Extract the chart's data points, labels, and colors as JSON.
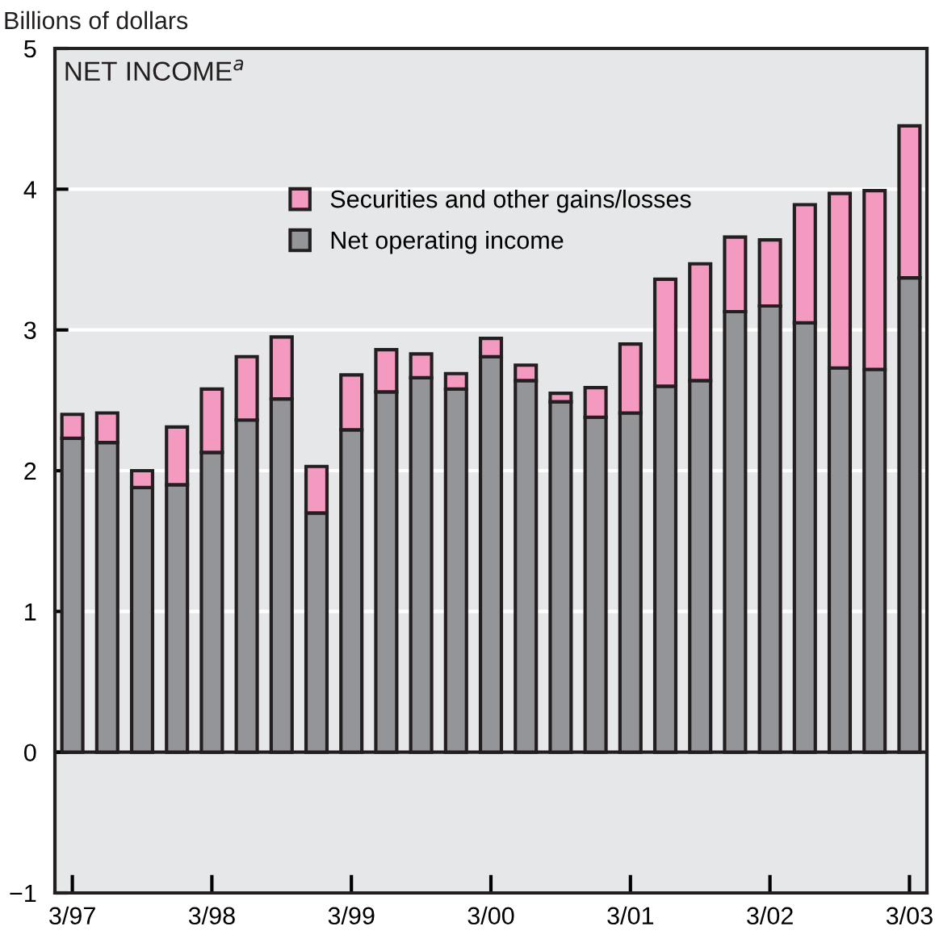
{
  "chart_data": {
    "type": "bar",
    "stacked": true,
    "title": "NET INCOME$^{a}$",
    "ylabel": "Billions of dollars",
    "categories": [
      "3/97",
      null,
      null,
      null,
      "3/98",
      null,
      null,
      null,
      "3/99",
      null,
      null,
      null,
      "3/00",
      null,
      null,
      null,
      "3/01",
      null,
      null,
      null,
      "3/02",
      null,
      null,
      null,
      "3/03"
    ],
    "series": [
      {
        "name": "Net operating income",
        "color": "#939598",
        "values": [
          2.23,
          2.2,
          1.88,
          1.9,
          2.13,
          2.36,
          2.51,
          1.7,
          2.29,
          2.56,
          2.66,
          2.58,
          2.81,
          2.64,
          2.49,
          2.38,
          2.41,
          2.6,
          2.64,
          3.13,
          3.17,
          3.05,
          2.73,
          2.72,
          3.37
        ]
      },
      {
        "name": "Securities and other gains/losses",
        "color": "#f49ac1",
        "values": [
          0.17,
          0.21,
          0.12,
          0.41,
          0.45,
          0.45,
          0.44,
          0.33,
          0.39,
          0.3,
          0.17,
          0.11,
          0.13,
          0.11,
          0.06,
          0.21,
          0.49,
          0.76,
          0.83,
          0.53,
          0.47,
          0.84,
          1.24,
          1.27,
          1.08
        ]
      }
    ],
    "ylim": [
      -1,
      5
    ],
    "yticks": [
      {
        "value": -1,
        "label": "−1"
      },
      0,
      1,
      2,
      3,
      4,
      5
    ],
    "grid": "y",
    "legend": "top"
  }
}
